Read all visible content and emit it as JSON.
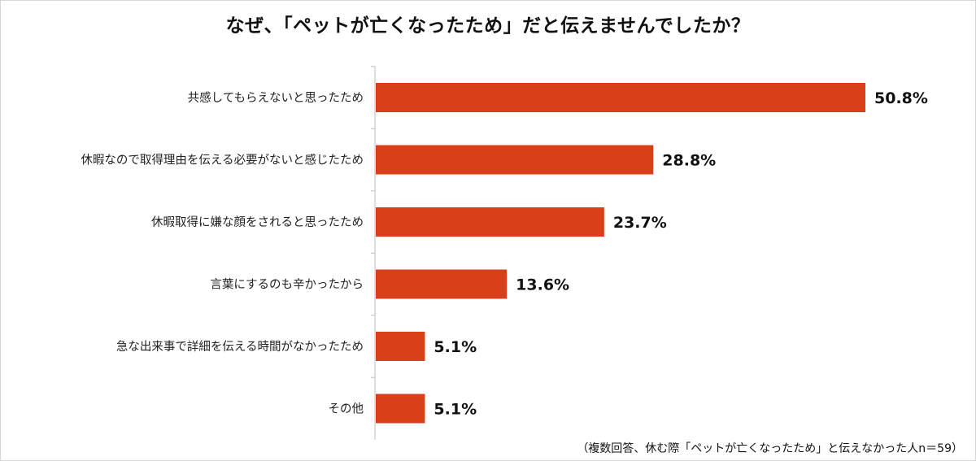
{
  "chart_data": {
    "type": "bar",
    "orientation": "horizontal",
    "title": "なぜ、「ペットが亡くなったため」だと伝えませんでしたか？",
    "categories": [
      "共感してもらえないと思ったため",
      "休暇なので取得理由を伝える必要がないと感じたため",
      "休暇取得に嫌な顔をされると思ったため",
      "言葉にするのも辛かったから",
      "急な出来事で詳細を伝える時間がなかったため",
      "その他"
    ],
    "values": [
      50.8,
      28.8,
      23.7,
      13.6,
      5.1,
      5.1
    ],
    "value_labels": [
      "50.8%",
      "28.8%",
      "23.7%",
      "13.6%",
      "5.1%",
      "5.1%"
    ],
    "xlim": [
      0,
      50.8
    ],
    "bar_color": "#d9401a",
    "grid": false,
    "legend": "none",
    "note": "（複数回答、休む際「ペットが亡くなったため」と伝えなかった人n＝59）"
  }
}
